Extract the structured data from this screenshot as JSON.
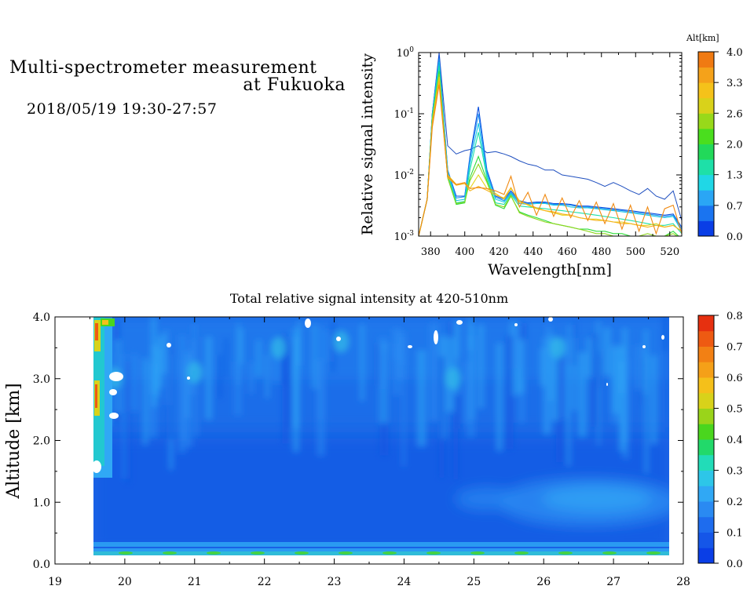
{
  "header": {
    "title_line1": "Multi-spectrometer measurement",
    "title_line2": "at Fukuoka",
    "datetime": "2018/05/19 19:30-27:57"
  },
  "chart_data": [
    {
      "type": "line",
      "xlabel": "Wavelength[nm]",
      "ylabel": "Relative signal intensity",
      "y_scale": "log",
      "xlim": [
        373,
        527
      ],
      "ylim": [
        0.001,
        1
      ],
      "x_ticks": [
        "380",
        "400",
        "420",
        "440",
        "460",
        "480",
        "500",
        "520"
      ],
      "y_ticks": [
        {
          "base": "10",
          "exp": "-3"
        },
        {
          "base": "10",
          "exp": "-2"
        },
        {
          "base": "10",
          "exp": "-1"
        },
        {
          "base": "10",
          "exp": "0"
        }
      ],
      "x": [
        373,
        378,
        381,
        385,
        390,
        395,
        400,
        403,
        408,
        413,
        418,
        423,
        427,
        432,
        437,
        442,
        447,
        452,
        457,
        462,
        467,
        472,
        477,
        482,
        487,
        492,
        497,
        502,
        507,
        512,
        517,
        522,
        527
      ],
      "series": [
        {
          "color": "#1f4fbf",
          "values": [
            0.001,
            0.004,
            0.1,
            1.0,
            0.03,
            0.022,
            0.025,
            0.026,
            0.03,
            0.023,
            0.024,
            0.022,
            0.02,
            0.017,
            0.015,
            0.014,
            0.012,
            0.012,
            0.01,
            0.0095,
            0.009,
            0.0085,
            0.0075,
            0.0065,
            0.0075,
            0.0065,
            0.0055,
            0.0048,
            0.006,
            0.0045,
            0.004,
            0.0055,
            0.0018
          ]
        },
        {
          "color": "#0a50e0",
          "values": [
            0.001,
            0.004,
            0.1,
            0.9,
            0.012,
            0.0045,
            0.0045,
            0.02,
            0.13,
            0.012,
            0.0045,
            0.004,
            0.0055,
            0.0038,
            0.0035,
            0.0036,
            0.0036,
            0.0034,
            0.0034,
            0.0033,
            0.0031,
            0.0031,
            0.003,
            0.0029,
            0.0028,
            0.0027,
            0.0026,
            0.0025,
            0.0024,
            0.0023,
            0.0022,
            0.0023,
            0.0014
          ]
        },
        {
          "color": "#2090f0",
          "values": [
            0.001,
            0.004,
            0.1,
            0.8,
            0.012,
            0.0042,
            0.0044,
            0.018,
            0.1,
            0.011,
            0.0043,
            0.0038,
            0.0052,
            0.0036,
            0.0034,
            0.0035,
            0.0035,
            0.0033,
            0.0033,
            0.0032,
            0.003,
            0.003,
            0.0029,
            0.0028,
            0.0027,
            0.0026,
            0.0025,
            0.0024,
            0.0023,
            0.0022,
            0.0021,
            0.0022,
            0.0013
          ]
        },
        {
          "color": "#19c8e6",
          "values": [
            0.001,
            0.004,
            0.09,
            0.7,
            0.011,
            0.0038,
            0.004,
            0.015,
            0.07,
            0.01,
            0.004,
            0.0036,
            0.005,
            0.0034,
            0.0033,
            0.0034,
            0.0034,
            0.0032,
            0.0032,
            0.003,
            0.0029,
            0.0029,
            0.0028,
            0.0027,
            0.0026,
            0.0025,
            0.0024,
            0.0023,
            0.0022,
            0.0021,
            0.002,
            0.0021,
            0.0012
          ]
        },
        {
          "color": "#1ee0a8",
          "values": [
            0.001,
            0.004,
            0.09,
            0.6,
            0.01,
            0.0035,
            0.0037,
            0.012,
            0.05,
            0.009,
            0.0035,
            0.0033,
            0.0048,
            0.0031,
            0.003,
            0.0029,
            0.0028,
            0.0027,
            0.0026,
            0.0025,
            0.0024,
            0.0023,
            0.0022,
            0.0021,
            0.002,
            0.0019,
            0.0018,
            0.0017,
            0.0016,
            0.0015,
            0.0015,
            0.0016,
            0.0011
          ]
        },
        {
          "color": "#2ddd3a",
          "values": [
            0.001,
            0.004,
            0.08,
            0.5,
            0.009,
            0.0033,
            0.0035,
            0.009,
            0.02,
            0.008,
            0.0032,
            0.0028,
            0.0045,
            0.0025,
            0.0022,
            0.002,
            0.0018,
            0.0016,
            0.0015,
            0.0014,
            0.0013,
            0.0013,
            0.0012,
            0.0012,
            0.0011,
            0.0011,
            0.001,
            0.001,
            0.001,
            0.001,
            0.001,
            0.0012,
            0.0009
          ]
        },
        {
          "color": "#8fd61e",
          "values": [
            0.001,
            0.004,
            0.08,
            0.45,
            0.009,
            0.0034,
            0.0036,
            0.008,
            0.015,
            0.0075,
            0.0033,
            0.003,
            0.0046,
            0.0024,
            0.0021,
            0.0019,
            0.0017,
            0.0016,
            0.0015,
            0.0014,
            0.0013,
            0.0012,
            0.0011,
            0.0011,
            0.001,
            0.001,
            0.001,
            0.001,
            0.0011,
            0.001,
            0.001,
            0.0011,
            0.0009
          ]
        },
        {
          "color": "#e6d21a",
          "values": [
            0.001,
            0.004,
            0.07,
            0.4,
            0.01,
            0.007,
            0.0075,
            0.006,
            0.01,
            0.006,
            0.005,
            0.004,
            0.006,
            0.0038,
            0.0032,
            0.0028,
            0.0026,
            0.0024,
            0.0022,
            0.0022,
            0.002,
            0.0019,
            0.0019,
            0.0018,
            0.0017,
            0.0017,
            0.0016,
            0.0015,
            0.0015,
            0.0016,
            0.0014,
            0.0015,
            0.0012
          ]
        },
        {
          "color": "#f5b21a",
          "values": [
            0.001,
            0.004,
            0.07,
            0.35,
            0.009,
            0.0068,
            0.0072,
            0.0055,
            0.0065,
            0.0056,
            0.0047,
            0.0042,
            0.0062,
            0.0036,
            0.0033,
            0.0029,
            0.0026,
            0.0025,
            0.0023,
            0.0022,
            0.002,
            0.0019,
            0.0018,
            0.0018,
            0.0017,
            0.0016,
            0.0016,
            0.0015,
            0.0014,
            0.0015,
            0.0014,
            0.0015,
            0.0012
          ]
        },
        {
          "color": "#f08a12",
          "values": [
            0.001,
            0.004,
            0.06,
            0.3,
            0.0095,
            0.007,
            0.0075,
            0.006,
            0.0062,
            0.006,
            0.0055,
            0.0048,
            0.0095,
            0.003,
            0.0052,
            0.0022,
            0.0048,
            0.0021,
            0.0042,
            0.002,
            0.0038,
            0.0018,
            0.0036,
            0.0016,
            0.0034,
            0.0013,
            0.0032,
            0.0012,
            0.003,
            0.0011,
            0.0028,
            0.0032,
            0.0011
          ]
        }
      ]
    },
    {
      "type": "heatmap",
      "title": "Total relative signal intensity at 420-510nm",
      "ylabel": "Altitude [km]",
      "xlim": [
        19,
        28
      ],
      "ylim": [
        0,
        4
      ],
      "x_ticks": [
        "19",
        "20",
        "21",
        "22",
        "23",
        "24",
        "25",
        "26",
        "27",
        "28"
      ],
      "y_ticks": [
        "0.0",
        "1.0",
        "2.0",
        "3.0",
        "4.0"
      ],
      "data_range_x": [
        19.5,
        27.95
      ],
      "data_range_y": [
        0.15,
        4.0
      ],
      "ridges": [
        {
          "x": 19.55,
          "alt": 3.5,
          "value": 0.7
        },
        {
          "x": 19.55,
          "alt": 2.6,
          "value": 0.65
        },
        {
          "x": 19.85,
          "alt": 3.0,
          "value": 0.3
        },
        {
          "x": 21.0,
          "alt": 3.1,
          "value": 0.25
        },
        {
          "x": 22.2,
          "alt": 3.5,
          "value": 0.25
        },
        {
          "x": 23.1,
          "alt": 3.6,
          "value": 0.25
        },
        {
          "x": 24.7,
          "alt": 3.0,
          "value": 0.25
        },
        {
          "x": 26.2,
          "alt": 3.5,
          "value": 0.25
        }
      ],
      "lower_layer": {
        "x_from": 25.3,
        "x_to": 27.9,
        "alt_from": 0.5,
        "alt_to": 1.2,
        "value": 0.2
      },
      "surface_layer": {
        "alt": 0.15,
        "value": 0.25
      }
    }
  ],
  "colorbars": {
    "spectrum": {
      "title": "Alt[km]",
      "labels": [
        "0.0",
        "0.7",
        "1.3",
        "2.0",
        "2.6",
        "3.3",
        "4.0"
      ],
      "colors": [
        "#0a3ee6",
        "#1a74f0",
        "#2aa6f5",
        "#20d7e6",
        "#1ee0a8",
        "#22d95a",
        "#4ade1e",
        "#98d91a",
        "#d9d21a",
        "#f5c21a",
        "#f5a21a",
        "#f07a12"
      ]
    },
    "total": {
      "labels": [
        "0.0",
        "0.1",
        "0.2",
        "0.3",
        "0.4",
        "0.5",
        "0.6",
        "0.7",
        "0.8"
      ],
      "colors": [
        "#0a3ee6",
        "#1556e8",
        "#1e6cee",
        "#2a8af2",
        "#30a8f5",
        "#2dc6e8",
        "#22dcb8",
        "#22d96a",
        "#4ad61e",
        "#9ad41a",
        "#d8d21a",
        "#f5c01a",
        "#f5a018",
        "#f28014",
        "#ee5a12",
        "#e63010"
      ]
    }
  }
}
